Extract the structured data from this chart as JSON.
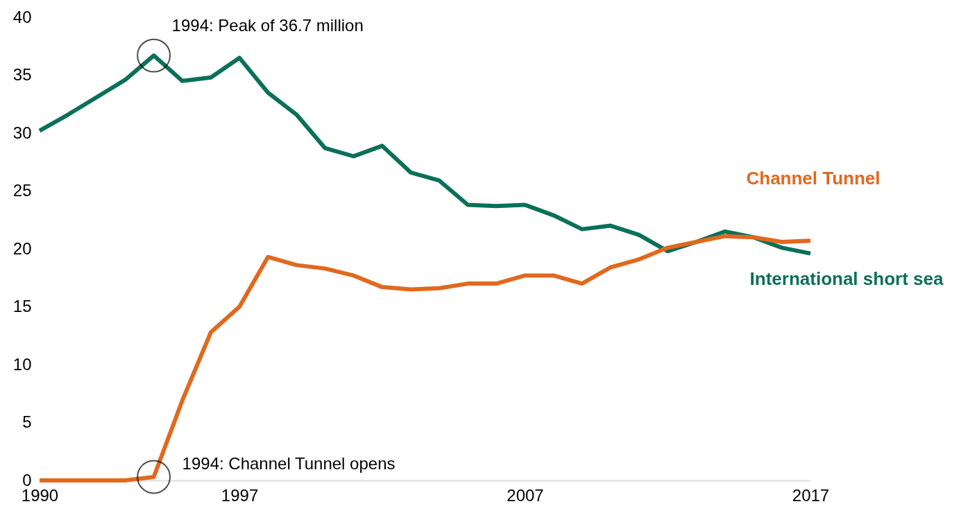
{
  "chart_data": {
    "type": "line",
    "x": [
      1990,
      1991,
      1992,
      1993,
      1994,
      1995,
      1996,
      1997,
      1998,
      1999,
      2000,
      2001,
      2002,
      2003,
      2004,
      2005,
      2006,
      2007,
      2008,
      2009,
      2010,
      2011,
      2012,
      2013,
      2014,
      2015,
      2016,
      2017
    ],
    "series": [
      {
        "name": "International short sea",
        "color": "#0b7059",
        "values": [
          30.2,
          31.6,
          33.1,
          34.6,
          36.7,
          34.5,
          34.8,
          36.5,
          33.5,
          31.6,
          28.7,
          28.0,
          28.9,
          26.6,
          25.9,
          23.8,
          23.7,
          23.8,
          22.9,
          21.7,
          22.0,
          21.2,
          19.8,
          20.6,
          21.5,
          21.0,
          20.1,
          19.6
        ]
      },
      {
        "name": "Channel Tunnel",
        "color": "#e0691f",
        "values": [
          0,
          0,
          0,
          0,
          0.3,
          6.9,
          12.8,
          15.0,
          19.3,
          18.6,
          18.3,
          17.7,
          16.7,
          16.5,
          16.6,
          17.0,
          17.0,
          17.7,
          17.7,
          17.0,
          18.4,
          19.1,
          20.1,
          20.6,
          21.1,
          21.0,
          20.6,
          20.7
        ]
      }
    ],
    "xlim": [
      1990,
      2017
    ],
    "xticks": [
      1990,
      1997,
      2007,
      2017
    ],
    "ylim": [
      0,
      40
    ],
    "yticks": [
      0,
      5,
      10,
      15,
      20,
      25,
      30,
      35,
      40
    ],
    "grid": false,
    "legend": false,
    "marker": "none",
    "line_style": "solid",
    "annotations": [
      {
        "text": "1994: Peak of 36.7 million",
        "x": 1994,
        "y": 36.7
      },
      {
        "text": "1994: Channel Tunnel opens",
        "x": 1994,
        "y": 0.3
      }
    ]
  }
}
